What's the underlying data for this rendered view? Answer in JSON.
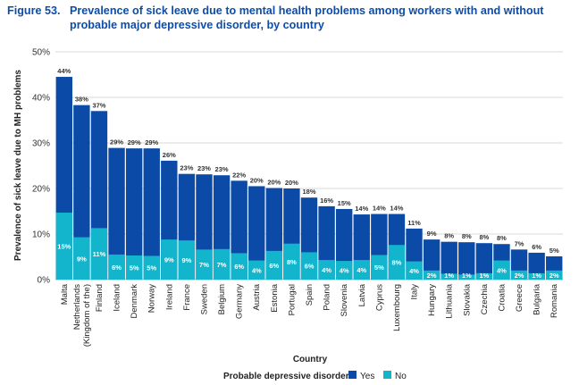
{
  "figure": {
    "number": "Figure 53.",
    "title_line1": "Prevalence of sick leave due to mental health problems among workers with and without",
    "title_line2": "probable major depressive disorder, by country"
  },
  "chart_data": {
    "type": "bar",
    "xlabel": "Country",
    "ylabel": "Prevalence of sick leave due to MH problems",
    "ylim": [
      0,
      50
    ],
    "yticks": [
      "0%",
      "10%",
      "20%",
      "30%",
      "40%",
      "50%"
    ],
    "grid": true,
    "legend_title": "Probable depressive disorder",
    "legend_position": "bottom",
    "colors": {
      "Yes": "#0b4aa6",
      "No": "#12b5cb"
    },
    "categories": [
      "Malta",
      "Netherlands (Kingdom of the)",
      "Finland",
      "Iceland",
      "Denmark",
      "Norway",
      "Ireland",
      "France",
      "Sweden",
      "Belgium",
      "Germany",
      "Austria",
      "Estonia",
      "Portugal",
      "Spain",
      "Poland",
      "Slovenia",
      "Latvia",
      "Cyprus",
      "Luxembourg",
      "Italy",
      "Hungary",
      "Lithuania",
      "Slovakia",
      "Czechia",
      "Croatia",
      "Greece",
      "Bulgaria",
      "Romania"
    ],
    "series": [
      {
        "name": "Yes",
        "values": [
          44.5,
          38.3,
          37,
          28.9,
          28.8,
          28.8,
          26.1,
          23.2,
          23.1,
          22.9,
          21.7,
          20.5,
          20.1,
          20.0,
          18.0,
          16.1,
          15.5,
          14.3,
          14.4,
          14.4,
          11.2,
          8.8,
          8.3,
          8.2,
          8.0,
          7.8,
          6.6,
          5.9,
          5.1
        ],
        "labels": [
          "44%",
          "38%",
          "37%",
          "29%",
          "29%",
          "29%",
          "26%",
          "23%",
          "23%",
          "23%",
          "22%",
          "20%",
          "20%",
          "20%",
          "18%",
          "16%",
          "15%",
          "14%",
          "14%",
          "14%",
          "11%",
          "9%",
          "8%",
          "8%",
          "8%",
          "8%",
          "7%",
          "6%",
          "5%"
        ]
      },
      {
        "name": "No",
        "values": [
          14.7,
          9.3,
          11.3,
          5.5,
          5.3,
          5.2,
          8.8,
          8.6,
          6.6,
          6.7,
          5.8,
          4.2,
          6.3,
          7.9,
          6.0,
          4.3,
          4.1,
          4.3,
          5.4,
          7.6,
          4.0,
          2.0,
          1.3,
          1.1,
          1.4,
          4.2,
          2.0,
          1.4,
          2.0
        ],
        "labels": [
          "15%",
          "9%",
          "11%",
          "6%",
          "5%",
          "5%",
          "9%",
          "9%",
          "7%",
          "7%",
          "6%",
          "4%",
          "6%",
          "8%",
          "6%",
          "4%",
          "4%",
          "4%",
          "5%",
          "8%",
          "4%",
          "2%",
          "1%",
          "1%",
          "1%",
          "4%",
          "2%",
          "1%",
          "2%"
        ]
      }
    ],
    "category_label_lines": [
      [
        "Malta"
      ],
      [
        "Netherlands",
        "(Kingdom of the)"
      ],
      [
        "Finland"
      ],
      [
        "Iceland"
      ],
      [
        "Denmark"
      ],
      [
        "Norway"
      ],
      [
        "Ireland"
      ],
      [
        "France"
      ],
      [
        "Sweden"
      ],
      [
        "Belgium"
      ],
      [
        "Germany"
      ],
      [
        "Austria"
      ],
      [
        "Estonia"
      ],
      [
        "Portugal"
      ],
      [
        "Spain"
      ],
      [
        "Poland"
      ],
      [
        "Slovenia"
      ],
      [
        "Latvia"
      ],
      [
        "Cyprus"
      ],
      [
        "Luxembourg"
      ],
      [
        "Italy"
      ],
      [
        "Hungary"
      ],
      [
        "Lithuania"
      ],
      [
        "Slovakia"
      ],
      [
        "Czechia"
      ],
      [
        "Croatia"
      ],
      [
        "Greece"
      ],
      [
        "Bulgaria"
      ],
      [
        "Romania"
      ]
    ]
  }
}
